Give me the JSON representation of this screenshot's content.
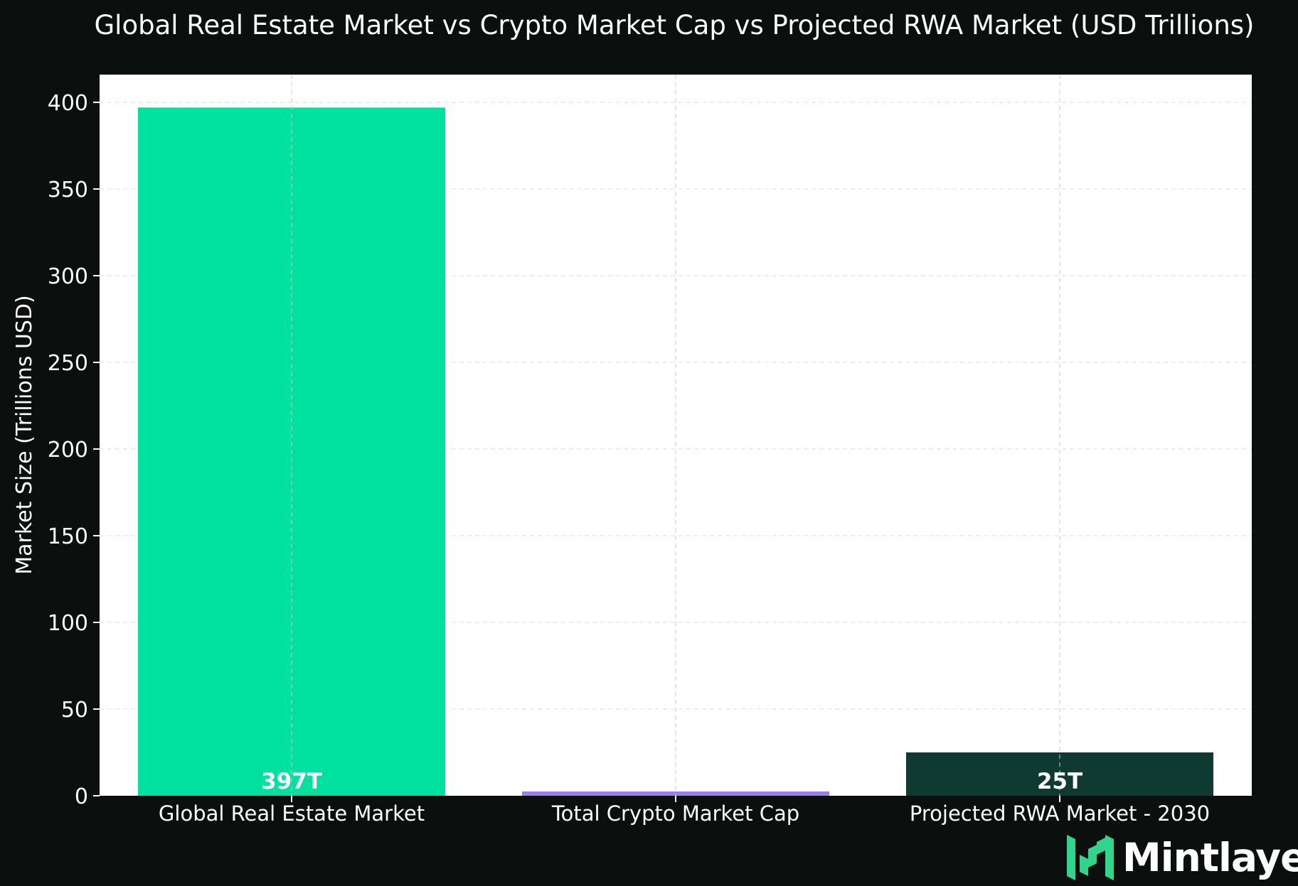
{
  "chart_data": {
    "type": "bar",
    "title": "Global Real Estate Market vs Crypto Market Cap vs Projected RWA Market (USD Trillions)",
    "xlabel": "",
    "ylabel": "Market Size (Trillions USD)",
    "categories": [
      "Global Real Estate Market",
      "Total Crypto Market Cap",
      "Projected RWA Market - 2030"
    ],
    "values": [
      397,
      2.5,
      25
    ],
    "data_labels": [
      "397T",
      "",
      "25T"
    ],
    "colors": [
      "#00e09e",
      "#9b7fe8",
      "#0e3a31"
    ],
    "ylim": [
      0,
      416
    ],
    "yticks": [
      0,
      50,
      100,
      150,
      200,
      250,
      300,
      350,
      400
    ],
    "grid": true,
    "legend": "none"
  },
  "brand": {
    "name": "Mintlayer",
    "color": "#2fd58d",
    "icon": "mintlayer-logo-icon"
  }
}
